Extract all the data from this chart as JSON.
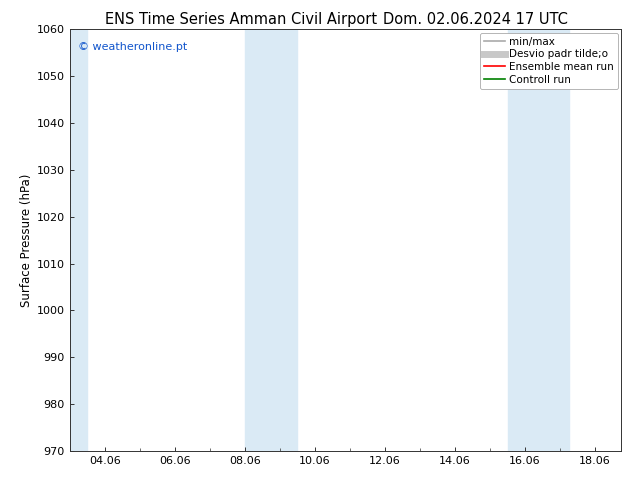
{
  "title_left": "ENS Time Series Amman Civil Airport",
  "title_right": "Dom. 02.06.2024 17 UTC",
  "ylabel": "Surface Pressure (hPa)",
  "ylim": [
    970,
    1060
  ],
  "yticks": [
    970,
    980,
    990,
    1000,
    1010,
    1020,
    1030,
    1040,
    1050,
    1060
  ],
  "xtick_labels": [
    "04.06",
    "06.06",
    "08.06",
    "10.06",
    "12.06",
    "14.06",
    "16.06",
    "18.06"
  ],
  "xtick_positions": [
    4,
    6,
    8,
    10,
    12,
    14,
    16,
    18
  ],
  "x_min": 3.0,
  "x_max": 18.75,
  "shaded_bands": [
    {
      "x_start": 2.9,
      "x_end": 3.5
    },
    {
      "x_start": 8.0,
      "x_end": 9.5
    },
    {
      "x_start": 15.5,
      "x_end": 17.25
    }
  ],
  "shaded_color": "#daeaf5",
  "watermark_text": "© weatheronline.pt",
  "watermark_color": "#1155cc",
  "legend_entries": [
    {
      "label": "min/max",
      "color": "#aaaaaa",
      "lw": 1.2
    },
    {
      "label": "Desvio padr tilde;o",
      "color": "#c8c8c8",
      "lw": 5
    },
    {
      "label": "Ensemble mean run",
      "color": "red",
      "lw": 1.2
    },
    {
      "label": "Controll run",
      "color": "green",
      "lw": 1.2
    }
  ],
  "bg_color": "#ffffff",
  "title_fontsize": 10.5,
  "label_fontsize": 8.5,
  "tick_fontsize": 8,
  "legend_fontsize": 7.5
}
